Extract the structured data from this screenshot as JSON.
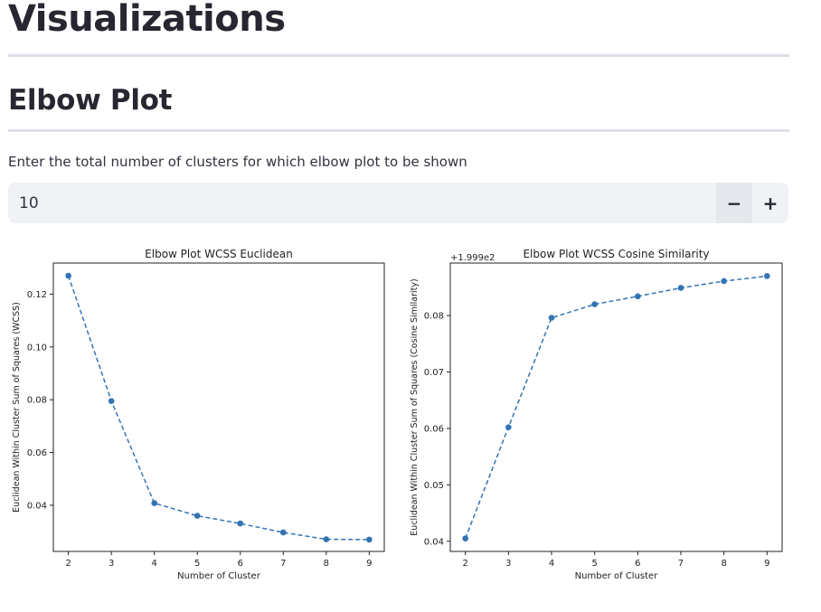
{
  "page": {
    "title": "Visualizations",
    "section_title": "Elbow Plot",
    "input_label": "Enter the total number of clusters for which elbow plot to be shown",
    "input_value": "10",
    "decrement_label": "−",
    "increment_label": "+"
  },
  "colors": {
    "series": "#3274b3",
    "rule": "#dcdfe8",
    "input_bg": "#f0f2f6"
  },
  "chart_data": [
    {
      "type": "line",
      "title": "Elbow Plot WCSS Euclidean",
      "xlabel": "Number of Cluster",
      "ylabel": "Euclidean Within Cluster Sum of Squares (WCSS)",
      "offset_text": "",
      "x": [
        2,
        3,
        4,
        5,
        6,
        7,
        8,
        9
      ],
      "y": [
        0.127,
        0.0795,
        0.0408,
        0.036,
        0.0331,
        0.0297,
        0.0271,
        0.027
      ],
      "xlim": [
        1.65,
        9.35
      ],
      "ylim": [
        0.0225,
        0.1318
      ],
      "xticks": [
        2,
        3,
        4,
        5,
        6,
        7,
        8,
        9
      ],
      "yticks": [
        0.04,
        0.06,
        0.08,
        0.1,
        0.12
      ],
      "ytick_labels": [
        "0.04",
        "0.06",
        "0.08",
        "0.10",
        "0.12"
      ],
      "line_style": "dashed",
      "marker": "circle",
      "grid": false
    },
    {
      "type": "line",
      "title": "Elbow Plot WCSS Cosine Similarity",
      "xlabel": "Number of Cluster",
      "ylabel": "Euclidean Within Cluster Sum of Squares (Cosine Similarity)",
      "offset_text": "+1.999e2",
      "x": [
        2,
        3,
        4,
        5,
        6,
        7,
        8,
        9
      ],
      "y": [
        0.0405,
        0.0602,
        0.0796,
        0.082,
        0.0834,
        0.0849,
        0.0861,
        0.087
      ],
      "xlim": [
        1.65,
        9.35
      ],
      "ylim": [
        0.0382,
        0.0893
      ],
      "xticks": [
        2,
        3,
        4,
        5,
        6,
        7,
        8,
        9
      ],
      "yticks": [
        0.04,
        0.05,
        0.06,
        0.07,
        0.08
      ],
      "ytick_labels": [
        "0.04",
        "0.05",
        "0.06",
        "0.07",
        "0.08"
      ],
      "line_style": "dashed",
      "marker": "circle",
      "grid": false
    }
  ]
}
